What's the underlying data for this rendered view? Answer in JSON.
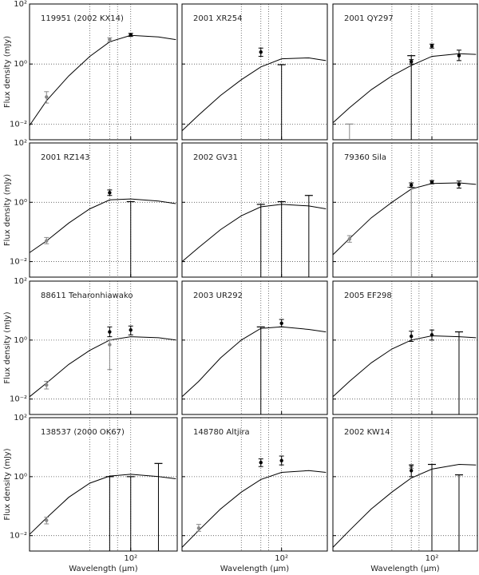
{
  "axes": {
    "xlim": [
      18,
      220
    ],
    "ylim": [
      0.003,
      100
    ],
    "log": true,
    "xticks": [
      {
        "value": 100,
        "label": "10²"
      }
    ],
    "yticks": [
      {
        "value": 0.01,
        "label": "10⁻²"
      },
      {
        "value": 1,
        "label": "10⁰"
      },
      {
        "value": 100,
        "label": "10²"
      }
    ],
    "xgrid": [
      50,
      70,
      80,
      100
    ],
    "x_label": "Wavelength (μm)",
    "y_label": "Flux density (mJy)",
    "model_x": [
      18,
      24,
      35,
      50,
      70,
      100,
      160,
      215
    ]
  },
  "chart_data": [
    {
      "type": "line",
      "title": "119951 (2002 KX14)",
      "series": [
        {
          "color": "#000000",
          "values": [
            0.009,
            0.06,
            0.4,
            1.8,
            5.5,
            9,
            8,
            6.5
          ]
        }
      ],
      "points": [
        {
          "x": 24,
          "value": 0.08,
          "lower": 0.05,
          "upper": 0.12,
          "color": "#888888"
        },
        {
          "x": 70,
          "value": 6.5,
          "lower": 5.5,
          "upper": 7.5,
          "color": "#888888"
        },
        {
          "x": 100,
          "value": 9.4,
          "lower": 8.3,
          "upper": 10.5,
          "color": "#000000"
        }
      ],
      "limits": []
    },
    {
      "type": "line",
      "title": "2001 XR254",
      "series": [
        {
          "color": "#000000",
          "values": [
            0.006,
            0.02,
            0.09,
            0.3,
            0.8,
            1.5,
            1.6,
            1.3
          ]
        }
      ],
      "points": [
        {
          "x": 70,
          "value": 2.5,
          "lower": 1.8,
          "upper": 3.4,
          "color": "#000000"
        }
      ],
      "limits": [
        {
          "x": 100,
          "value": 0.95,
          "color": "#000000"
        }
      ]
    },
    {
      "type": "line",
      "title": "2001 QY297",
      "series": [
        {
          "color": "#000000",
          "values": [
            0.011,
            0.035,
            0.14,
            0.4,
            0.9,
            1.8,
            2.2,
            2.1
          ]
        }
      ],
      "points": [
        {
          "x": 70,
          "value": 1.2,
          "lower": 1.0,
          "upper": 1.4,
          "color": "#000000"
        },
        {
          "x": 100,
          "value": 4,
          "lower": 3.4,
          "upper": 4.6,
          "color": "#000000"
        },
        {
          "x": 160,
          "value": 1.9,
          "lower": 1.3,
          "upper": 2.9,
          "color": "#000000"
        }
      ],
      "limits": [
        {
          "x": 24,
          "value": 0.01,
          "color": "#888888"
        },
        {
          "x": 70,
          "value": 1.9,
          "color": "#000000"
        }
      ]
    },
    {
      "type": "line",
      "title": "2001 RZ143",
      "series": [
        {
          "color": "#000000",
          "values": [
            0.02,
            0.05,
            0.2,
            0.6,
            1.2,
            1.3,
            1.1,
            0.9
          ]
        }
      ],
      "points": [
        {
          "x": 24,
          "value": 0.05,
          "lower": 0.04,
          "upper": 0.065,
          "color": "#888888"
        },
        {
          "x": 70,
          "value": 2.1,
          "lower": 1.7,
          "upper": 2.6,
          "color": "#000000"
        }
      ],
      "limits": [
        {
          "x": 100,
          "value": 1.05,
          "color": "#000000"
        }
      ]
    },
    {
      "type": "line",
      "title": "2002 GV31",
      "series": [
        {
          "color": "#000000",
          "values": [
            0.01,
            0.03,
            0.12,
            0.35,
            0.7,
            0.85,
            0.75,
            0.6
          ]
        }
      ],
      "points": [],
      "limits": [
        {
          "x": 70,
          "value": 0.85,
          "color": "#000000"
        },
        {
          "x": 100,
          "value": 1.05,
          "color": "#000000"
        },
        {
          "x": 160,
          "value": 1.7,
          "color": "#000000"
        }
      ]
    },
    {
      "type": "line",
      "title": "79360 Sila",
      "series": [
        {
          "color": "#000000",
          "values": [
            0.017,
            0.06,
            0.3,
            1.0,
            2.8,
            4.3,
            4.5,
            4.0
          ]
        }
      ],
      "points": [
        {
          "x": 24,
          "value": 0.058,
          "lower": 0.045,
          "upper": 0.075,
          "color": "#888888"
        },
        {
          "x": 70,
          "value": 3.8,
          "lower": 3.2,
          "upper": 4.5,
          "color": "#000000"
        },
        {
          "x": 100,
          "value": 4.8,
          "lower": 4.2,
          "upper": 5.4,
          "color": "#000000"
        },
        {
          "x": 160,
          "value": 4,
          "lower": 3,
          "upper": 5.2,
          "color": "#000000"
        }
      ],
      "limits": [
        {
          "x": 70,
          "value": 3.2,
          "color": "#888888"
        }
      ]
    },
    {
      "type": "line",
      "title": "88611 Teharonhiawako",
      "series": [
        {
          "color": "#000000",
          "values": [
            0.012,
            0.035,
            0.15,
            0.45,
            1.0,
            1.3,
            1.2,
            1.0
          ]
        }
      ],
      "points": [
        {
          "x": 24,
          "value": 0.03,
          "lower": 0.022,
          "upper": 0.04,
          "color": "#888888"
        },
        {
          "x": 70,
          "value": 1.9,
          "lower": 1.3,
          "upper": 2.8,
          "color": "#000000"
        },
        {
          "x": 70,
          "value": 0.7,
          "lower": 0.1,
          "upper": 1.0,
          "color": "#888888"
        },
        {
          "x": 100,
          "value": 2.2,
          "lower": 1.5,
          "upper": 3,
          "color": "#000000"
        }
      ],
      "limits": []
    },
    {
      "type": "line",
      "title": "2003 UR292",
      "series": [
        {
          "color": "#000000",
          "values": [
            0.012,
            0.04,
            0.25,
            1.0,
            2.5,
            2.8,
            2.3,
            1.9
          ]
        }
      ],
      "points": [
        {
          "x": 100,
          "value": 3.7,
          "lower": 2.8,
          "upper": 5,
          "color": "#000000"
        }
      ],
      "limits": [
        {
          "x": 70,
          "value": 2.8,
          "color": "#000000"
        }
      ]
    },
    {
      "type": "line",
      "title": "2005 EF298",
      "series": [
        {
          "color": "#000000",
          "values": [
            0.012,
            0.04,
            0.17,
            0.5,
            1.0,
            1.4,
            1.3,
            1.2
          ]
        }
      ],
      "points": [
        {
          "x": 70,
          "value": 1.35,
          "lower": 0.9,
          "upper": 2,
          "color": "#000000"
        },
        {
          "x": 100,
          "value": 1.5,
          "lower": 1,
          "upper": 2.2,
          "color": "#000000"
        }
      ],
      "limits": [
        {
          "x": 160,
          "value": 1.9,
          "color": "#000000"
        }
      ]
    },
    {
      "type": "line",
      "title": "138537 (2000 OK67)",
      "series": [
        {
          "color": "#000000",
          "values": [
            0.011,
            0.04,
            0.2,
            0.6,
            1.05,
            1.2,
            1.0,
            0.85
          ]
        }
      ],
      "points": [
        {
          "x": 24,
          "value": 0.033,
          "lower": 0.025,
          "upper": 0.042,
          "color": "#888888"
        }
      ],
      "limits": [
        {
          "x": 70,
          "value": 1,
          "color": "#000000"
        },
        {
          "x": 100,
          "value": 1,
          "color": "#000000"
        },
        {
          "x": 160,
          "value": 2.8,
          "color": "#000000"
        }
      ]
    },
    {
      "type": "line",
      "title": "148780 Altjira",
      "series": [
        {
          "color": "#000000",
          "values": [
            0.004,
            0.015,
            0.08,
            0.3,
            0.8,
            1.4,
            1.6,
            1.4
          ]
        }
      ],
      "points": [
        {
          "x": 24,
          "value": 0.018,
          "lower": 0.014,
          "upper": 0.024,
          "color": "#888888"
        },
        {
          "x": 70,
          "value": 3,
          "lower": 2.2,
          "upper": 4,
          "color": "#000000"
        },
        {
          "x": 100,
          "value": 3.5,
          "lower": 2.5,
          "upper": 5,
          "color": "#000000"
        }
      ],
      "limits": []
    },
    {
      "type": "line",
      "title": "2002 KW14",
      "series": [
        {
          "color": "#000000",
          "values": [
            0.004,
            0.015,
            0.08,
            0.3,
            0.9,
            1.8,
            2.6,
            2.5
          ]
        }
      ],
      "points": [
        {
          "x": 70,
          "value": 2.2,
          "lower": 1.9,
          "upper": 2.6,
          "color": "#888888"
        },
        {
          "x": 70,
          "value": 1.6,
          "lower": 1,
          "upper": 2.4,
          "color": "#000000"
        }
      ],
      "limits": [
        {
          "x": 100,
          "value": 2.6,
          "color": "#000000"
        },
        {
          "x": 160,
          "value": 1.15,
          "color": "#000000"
        }
      ]
    }
  ]
}
